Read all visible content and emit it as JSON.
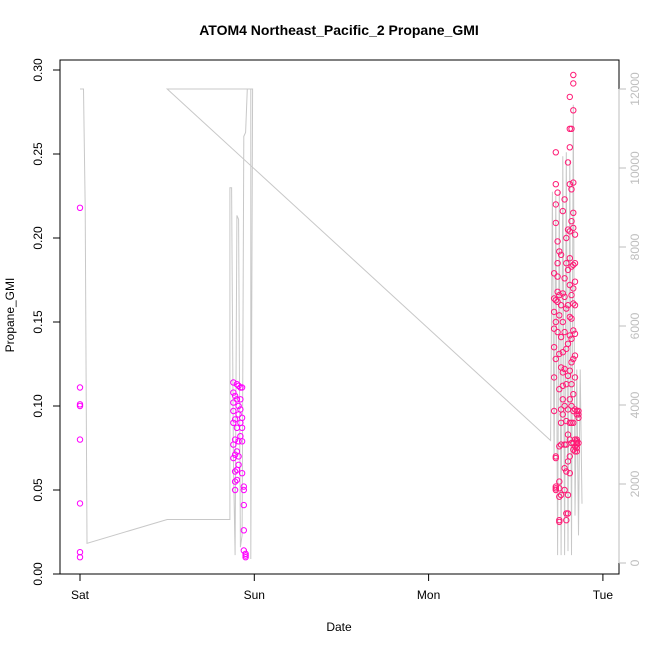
{
  "chart_data": {
    "type": "scatter",
    "title": "ATOM4 Northeast_Pacific_2 Propane_GMI",
    "xlabel": "Date",
    "ylabel": "Propane_GMI",
    "x_ticks": [
      "Sat",
      "Sun",
      "Mon",
      "Tue"
    ],
    "ylim": [
      0,
      0.3
    ],
    "y_ticks": [
      "0.00",
      "0.05",
      "0.10",
      "0.15",
      "0.20",
      "0.25",
      "0.30"
    ],
    "y2lim": [
      0,
      12000
    ],
    "y2_ticks": [
      "0",
      "2000",
      "4000",
      "6000",
      "8000",
      "10000",
      "12000"
    ],
    "grid": false,
    "colors": {
      "points_magenta": "#ff00ff",
      "points_pink": "#ff1a75",
      "altitude_line": "#c8c8c8",
      "right_axis": "#bebebe"
    },
    "series": [
      {
        "marker": "circle",
        "points": [
          [
            0.0,
            0.218
          ],
          [
            0.0,
            0.111
          ],
          [
            0.0,
            0.101
          ],
          [
            0.0,
            0.1
          ],
          [
            0.0,
            0.08
          ],
          [
            0.0,
            0.042
          ],
          [
            0.0,
            0.013
          ],
          [
            0.0,
            0.01
          ],
          [
            0.88,
            0.114
          ],
          [
            0.88,
            0.108
          ],
          [
            0.88,
            0.102
          ],
          [
            0.88,
            0.097
          ],
          [
            0.88,
            0.09
          ],
          [
            0.88,
            0.077
          ],
          [
            0.88,
            0.069
          ],
          [
            0.89,
            0.106
          ],
          [
            0.89,
            0.092
          ],
          [
            0.89,
            0.08
          ],
          [
            0.89,
            0.071
          ],
          [
            0.89,
            0.061
          ],
          [
            0.89,
            0.055
          ],
          [
            0.89,
            0.05
          ],
          [
            0.9,
            0.113
          ],
          [
            0.9,
            0.104
          ],
          [
            0.9,
            0.087
          ],
          [
            0.9,
            0.073
          ],
          [
            0.9,
            0.062
          ],
          [
            0.9,
            0.056
          ],
          [
            0.91,
            0.112
          ],
          [
            0.91,
            0.1
          ],
          [
            0.91,
            0.095
          ],
          [
            0.91,
            0.079
          ],
          [
            0.91,
            0.07
          ],
          [
            0.91,
            0.065
          ],
          [
            0.92,
            0.111
          ],
          [
            0.92,
            0.104
          ],
          [
            0.92,
            0.098
          ],
          [
            0.92,
            0.09
          ],
          [
            0.92,
            0.082
          ],
          [
            0.93,
            0.111
          ],
          [
            0.93,
            0.093
          ],
          [
            0.93,
            0.087
          ],
          [
            0.93,
            0.079
          ],
          [
            0.93,
            0.06
          ],
          [
            0.94,
            0.052
          ],
          [
            0.94,
            0.05
          ],
          [
            0.94,
            0.041
          ],
          [
            0.94,
            0.026
          ],
          [
            0.94,
            0.014
          ],
          [
            0.95,
            0.012
          ],
          [
            0.95,
            0.011
          ],
          [
            0.95,
            0.01
          ],
          [
            2.72,
            0.179
          ],
          [
            2.72,
            0.164
          ],
          [
            2.72,
            0.156
          ],
          [
            2.72,
            0.146
          ],
          [
            2.72,
            0.135
          ],
          [
            2.72,
            0.117
          ],
          [
            2.72,
            0.097
          ],
          [
            2.73,
            0.251
          ],
          [
            2.73,
            0.232
          ],
          [
            2.73,
            0.22
          ],
          [
            2.73,
            0.209
          ],
          [
            2.73,
            0.163
          ],
          [
            2.73,
            0.15
          ],
          [
            2.73,
            0.128
          ],
          [
            2.73,
            0.07
          ],
          [
            2.73,
            0.069
          ],
          [
            2.73,
            0.052
          ],
          [
            2.73,
            0.051
          ],
          [
            2.73,
            0.05
          ],
          [
            2.74,
            0.227
          ],
          [
            2.74,
            0.198
          ],
          [
            2.74,
            0.185
          ],
          [
            2.74,
            0.177
          ],
          [
            2.74,
            0.168
          ],
          [
            2.74,
            0.162
          ],
          [
            2.74,
            0.144
          ],
          [
            2.75,
            0.192
          ],
          [
            2.75,
            0.166
          ],
          [
            2.75,
            0.154
          ],
          [
            2.75,
            0.131
          ],
          [
            2.75,
            0.11
          ],
          [
            2.75,
            0.076
          ],
          [
            2.75,
            0.055
          ],
          [
            2.75,
            0.051
          ],
          [
            2.75,
            0.046
          ],
          [
            2.75,
            0.032
          ],
          [
            2.75,
            0.031
          ],
          [
            2.76,
            0.19
          ],
          [
            2.76,
            0.16
          ],
          [
            2.76,
            0.141
          ],
          [
            2.76,
            0.123
          ],
          [
            2.76,
            0.098
          ],
          [
            2.76,
            0.09
          ],
          [
            2.76,
            0.077
          ],
          [
            2.76,
            0.047
          ],
          [
            2.77,
            0.216
          ],
          [
            2.77,
            0.167
          ],
          [
            2.77,
            0.15
          ],
          [
            2.77,
            0.132
          ],
          [
            2.77,
            0.12
          ],
          [
            2.77,
            0.112
          ],
          [
            2.77,
            0.104
          ],
          [
            2.77,
            0.095
          ],
          [
            2.78,
            0.223
          ],
          [
            2.78,
            0.176
          ],
          [
            2.78,
            0.165
          ],
          [
            2.78,
            0.144
          ],
          [
            2.78,
            0.122
          ],
          [
            2.78,
            0.1
          ],
          [
            2.78,
            0.077
          ],
          [
            2.78,
            0.063
          ],
          [
            2.78,
            0.05
          ],
          [
            2.79,
            0.2
          ],
          [
            2.79,
            0.185
          ],
          [
            2.79,
            0.158
          ],
          [
            2.79,
            0.134
          ],
          [
            2.79,
            0.113
          ],
          [
            2.79,
            0.091
          ],
          [
            2.79,
            0.077
          ],
          [
            2.79,
            0.061
          ],
          [
            2.79,
            0.036
          ],
          [
            2.79,
            0.032
          ],
          [
            2.8,
            0.245
          ],
          [
            2.8,
            0.205
          ],
          [
            2.8,
            0.181
          ],
          [
            2.8,
            0.16
          ],
          [
            2.8,
            0.137
          ],
          [
            2.8,
            0.118
          ],
          [
            2.8,
            0.098
          ],
          [
            2.8,
            0.083
          ],
          [
            2.8,
            0.067
          ],
          [
            2.8,
            0.047
          ],
          [
            2.8,
            0.036
          ],
          [
            2.81,
            0.284
          ],
          [
            2.81,
            0.265
          ],
          [
            2.81,
            0.254
          ],
          [
            2.81,
            0.232
          ],
          [
            2.81,
            0.204
          ],
          [
            2.81,
            0.188
          ],
          [
            2.81,
            0.172
          ],
          [
            2.81,
            0.153
          ],
          [
            2.81,
            0.142
          ],
          [
            2.81,
            0.121
          ],
          [
            2.81,
            0.104
          ],
          [
            2.81,
            0.09
          ],
          [
            2.81,
            0.08
          ],
          [
            2.81,
            0.07
          ],
          [
            2.81,
            0.06
          ],
          [
            2.82,
            0.265
          ],
          [
            2.82,
            0.229
          ],
          [
            2.82,
            0.21
          ],
          [
            2.82,
            0.183
          ],
          [
            2.82,
            0.166
          ],
          [
            2.82,
            0.152
          ],
          [
            2.82,
            0.14
          ],
          [
            2.82,
            0.126
          ],
          [
            2.82,
            0.113
          ],
          [
            2.82,
            0.1
          ],
          [
            2.82,
            0.09
          ],
          [
            2.82,
            0.078
          ],
          [
            2.83,
            0.297
          ],
          [
            2.83,
            0.292
          ],
          [
            2.83,
            0.276
          ],
          [
            2.83,
            0.233
          ],
          [
            2.83,
            0.215
          ],
          [
            2.83,
            0.206
          ],
          [
            2.83,
            0.184
          ],
          [
            2.83,
            0.17
          ],
          [
            2.83,
            0.161
          ],
          [
            2.83,
            0.145
          ],
          [
            2.83,
            0.128
          ],
          [
            2.83,
            0.107
          ],
          [
            2.83,
            0.097
          ],
          [
            2.83,
            0.09
          ],
          [
            2.83,
            0.078
          ],
          [
            2.83,
            0.074
          ],
          [
            2.84,
            0.202
          ],
          [
            2.84,
            0.185
          ],
          [
            2.84,
            0.174
          ],
          [
            2.84,
            0.16
          ],
          [
            2.84,
            0.143
          ],
          [
            2.84,
            0.13
          ],
          [
            2.84,
            0.117
          ],
          [
            2.84,
            0.098
          ],
          [
            2.84,
            0.08
          ],
          [
            2.84,
            0.076
          ],
          [
            2.84,
            0.073
          ],
          [
            2.85,
            0.097
          ],
          [
            2.85,
            0.095
          ],
          [
            2.85,
            0.08
          ],
          [
            2.85,
            0.079
          ],
          [
            2.85,
            0.078
          ],
          [
            2.85,
            0.077
          ],
          [
            2.85,
            0.075
          ],
          [
            2.85,
            0.073
          ],
          [
            2.86,
            0.097
          ],
          [
            2.86,
            0.095
          ],
          [
            2.86,
            0.093
          ],
          [
            2.86,
            0.078
          ]
        ]
      }
    ],
    "altitude_series": {
      "axis": "right",
      "points": [
        [
          0.0,
          12000
        ],
        [
          0.02,
          12000
        ],
        [
          0.03,
          9000
        ],
        [
          0.04,
          500
        ],
        [
          0.5,
          1100
        ],
        [
          0.86,
          1100
        ],
        [
          0.86,
          9500
        ],
        [
          0.87,
          9500
        ],
        [
          0.88,
          2600
        ],
        [
          0.89,
          200
        ],
        [
          0.9,
          8800
        ],
        [
          0.91,
          8700
        ],
        [
          0.92,
          400
        ],
        [
          0.93,
          700
        ],
        [
          0.94,
          10800
        ],
        [
          0.95,
          10900
        ],
        [
          0.96,
          12000
        ],
        [
          0.98,
          12000
        ],
        [
          0.98,
          100
        ],
        [
          0.99,
          12000
        ],
        [
          0.5,
          12000
        ],
        [
          2.7,
          3100
        ],
        [
          2.71,
          9400
        ],
        [
          2.72,
          2600
        ],
        [
          2.73,
          9300
        ],
        [
          2.74,
          200
        ],
        [
          2.75,
          9400
        ],
        [
          2.76,
          200
        ],
        [
          2.77,
          10300
        ],
        [
          2.78,
          200
        ],
        [
          2.79,
          10400
        ],
        [
          2.8,
          300
        ],
        [
          2.81,
          10200
        ],
        [
          2.82,
          200
        ],
        [
          2.83,
          11600
        ],
        [
          2.84,
          1200
        ],
        [
          2.85,
          4900
        ],
        [
          2.86,
          700
        ],
        [
          2.87,
          4900
        ],
        [
          2.88,
          1500
        ]
      ]
    }
  }
}
